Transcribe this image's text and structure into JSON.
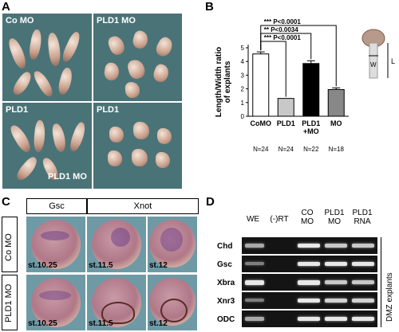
{
  "panels": {
    "a": {
      "letter": "A",
      "quadrants": [
        {
          "label": "Co MO"
        },
        {
          "label": "PLD1 MO"
        },
        {
          "label": "PLD1"
        },
        {
          "label": "PLD1"
        },
        {
          "label": "PLD1 MO"
        }
      ]
    },
    "b": {
      "letter": "B"
    },
    "c": {
      "letter": "C",
      "headers": [
        "Gsc",
        "Xnot"
      ],
      "rows": [
        "Co MO",
        "PLD1 MO"
      ],
      "stages": [
        "st.10.25",
        "st.11.5",
        "st.12",
        "st.10.25",
        "st.11.5",
        "st.12"
      ]
    },
    "d": {
      "letter": "D",
      "columns": [
        "WE",
        "(-)RT",
        "CO\nMO",
        "PLD1\nMO",
        "PLD1\nRNA"
      ],
      "genes": [
        "Chd",
        "Gsc",
        "Xbra",
        "Xnr3",
        "ODC"
      ],
      "side_label": "DMZ explants"
    }
  },
  "chart_data": {
    "type": "bar",
    "categories": [
      "CoMO",
      "PLD1",
      "PLD1\n+MO",
      "MO"
    ],
    "values": [
      4.55,
      1.3,
      3.85,
      1.95
    ],
    "errors": [
      0.15,
      0,
      0.2,
      0.12
    ],
    "ylabel": "Length/Width ratio of explants",
    "ylim": [
      0,
      5
    ],
    "yticks": [
      0,
      1,
      2,
      3,
      4,
      5
    ],
    "n_labels": [
      "N=24",
      "N=24",
      "N=22",
      "N=18"
    ],
    "significance": [
      {
        "from": 0,
        "to": 3,
        "text": "*** P<0.0001"
      },
      {
        "from": 0,
        "to": 2,
        "text": "** P<0.0034"
      },
      {
        "from": 0,
        "to": 1,
        "text": "*** P<0.0001"
      }
    ],
    "bar_colors": [
      "#ffffff",
      "#c8c8c8",
      "#000000",
      "#888888"
    ],
    "schematic_labels": {
      "w": "W",
      "l": "L"
    }
  }
}
